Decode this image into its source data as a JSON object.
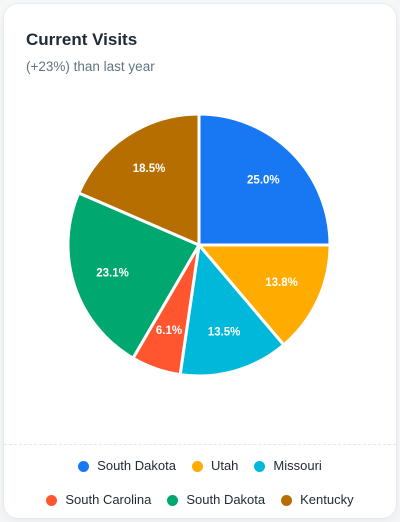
{
  "header": {
    "title": "Current Visits",
    "subtitle": "(+23%) than last year"
  },
  "chart_data": {
    "type": "pie",
    "title": "Current Visits",
    "subtitle": "(+23%) than last year",
    "legend_position": "bottom",
    "slices": [
      {
        "name": "South Dakota",
        "value": 25.0,
        "label": "25.0%",
        "color": "#1877f2"
      },
      {
        "name": "Utah",
        "value": 13.8,
        "label": "13.8%",
        "color": "#ffab00"
      },
      {
        "name": "Missouri",
        "value": 13.5,
        "label": "13.5%",
        "color": "#00b8d9"
      },
      {
        "name": "South Carolina",
        "value": 6.1,
        "label": "6.1%",
        "color": "#ff5630"
      },
      {
        "name": "South Dakota",
        "value": 23.1,
        "label": "23.1%",
        "color": "#00a76f"
      },
      {
        "name": "Kentucky",
        "value": 18.5,
        "label": "18.5%",
        "color": "#b76e00"
      }
    ]
  }
}
